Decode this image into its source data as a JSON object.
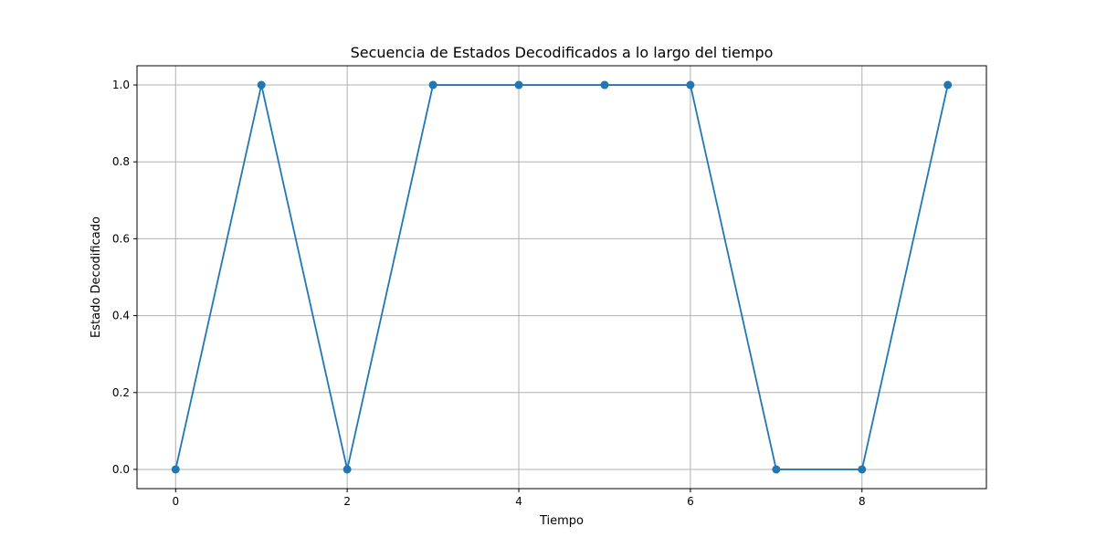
{
  "chart_data": {
    "type": "line",
    "title": "Secuencia de Estados Decodificados a lo largo del tiempo",
    "xlabel": "Tiempo",
    "ylabel": "Estado Decodificado",
    "x": [
      0,
      1,
      2,
      3,
      4,
      5,
      6,
      7,
      8,
      9
    ],
    "series": [
      {
        "values": [
          0,
          1,
          0,
          1,
          1,
          1,
          1,
          0,
          0,
          1
        ],
        "color": "#1f77b4",
        "marker": "circle"
      }
    ],
    "xlim": [
      -0.45,
      9.45
    ],
    "ylim": [
      -0.05,
      1.05
    ],
    "xticks": [
      0,
      2,
      4,
      6,
      8
    ],
    "xtick_labels": [
      "0",
      "2",
      "4",
      "6",
      "8"
    ],
    "yticks": [
      0.0,
      0.2,
      0.4,
      0.6,
      0.8,
      1.0
    ],
    "ytick_labels": [
      "0.0",
      "0.2",
      "0.4",
      "0.6",
      "0.8",
      "1.0"
    ],
    "grid": true,
    "grid_color": "#b0b0b0"
  }
}
